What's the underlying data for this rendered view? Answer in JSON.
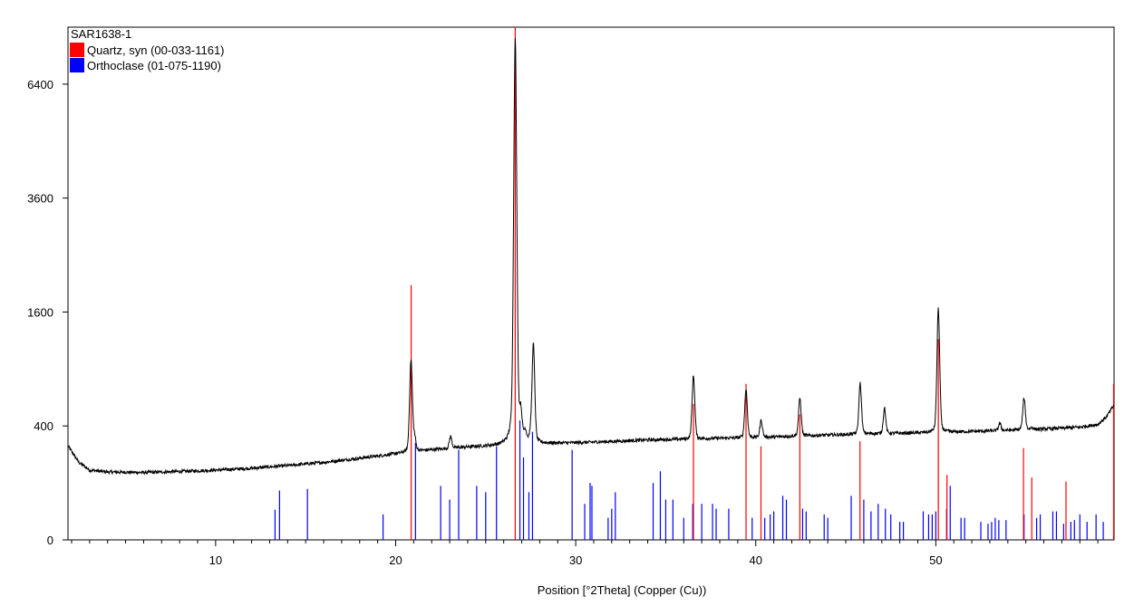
{
  "chart_data": {
    "type": "line",
    "title": "SAR1638-1",
    "xlabel": "Position [°2Theta] (Copper (Cu))",
    "ylabel": "",
    "x_range": [
      1.8,
      59.9
    ],
    "y_scale": "sqrt",
    "y_range": [
      0,
      8100
    ],
    "x_ticks": [
      10,
      20,
      30,
      40,
      50
    ],
    "y_ticks": [
      0,
      400,
      1600,
      3600,
      6400
    ],
    "grid": false,
    "legend_position": "top-left",
    "series": [
      {
        "name": "SAR1638-1",
        "color": "#000000",
        "background": [
          [
            1.8,
            270
          ],
          [
            2.4,
            185
          ],
          [
            3.0,
            150
          ],
          [
            4.0,
            142
          ],
          [
            6.0,
            140
          ],
          [
            8.0,
            144
          ],
          [
            10.0,
            150
          ],
          [
            12.0,
            158
          ],
          [
            14.0,
            170
          ],
          [
            16.0,
            185
          ],
          [
            18.0,
            205
          ],
          [
            20.0,
            228
          ],
          [
            22.0,
            250
          ],
          [
            24.0,
            265
          ],
          [
            26.0,
            275
          ],
          [
            28.0,
            285
          ],
          [
            30.0,
            290
          ],
          [
            32.0,
            298
          ],
          [
            34.0,
            308
          ],
          [
            36.0,
            312
          ],
          [
            38.0,
            318
          ],
          [
            40.0,
            322
          ],
          [
            42.0,
            330
          ],
          [
            44.0,
            338
          ],
          [
            46.0,
            345
          ],
          [
            48.0,
            350
          ],
          [
            50.0,
            355
          ],
          [
            52.0,
            362
          ],
          [
            54.0,
            370
          ],
          [
            56.0,
            378
          ],
          [
            58.0,
            392
          ],
          [
            59.0,
            410
          ],
          [
            59.5,
            470
          ],
          [
            59.9,
            560
          ]
        ],
        "peaks": [
          [
            20.85,
            1000
          ],
          [
            21.05,
            320
          ],
          [
            23.05,
            330
          ],
          [
            26.64,
            7800
          ],
          [
            26.95,
            460
          ],
          [
            27.2,
            340
          ],
          [
            27.5,
            330
          ],
          [
            27.65,
            1170
          ],
          [
            36.54,
            830
          ],
          [
            39.46,
            700
          ],
          [
            40.3,
            440
          ],
          [
            42.45,
            620
          ],
          [
            45.8,
            755
          ],
          [
            47.15,
            535
          ],
          [
            50.14,
            1650
          ],
          [
            53.55,
            420
          ],
          [
            54.9,
            620
          ],
          [
            55.35,
            390
          ]
        ]
      },
      {
        "name": "Quartz, syn (00-033-1161)",
        "color": "#ff0000",
        "reference_lines": [
          [
            20.86,
            2000
          ],
          [
            26.64,
            8100
          ],
          [
            36.54,
            570
          ],
          [
            39.46,
            750
          ],
          [
            40.29,
            270
          ],
          [
            42.45,
            485
          ],
          [
            45.79,
            300
          ],
          [
            50.14,
            1240
          ],
          [
            50.62,
            130
          ],
          [
            54.87,
            260
          ],
          [
            55.33,
            120
          ],
          [
            57.23,
            105
          ],
          [
            59.96,
            750
          ]
        ]
      },
      {
        "name": "Orthoclase (01-075-1190)",
        "color": "#0000ff",
        "reference_lines": [
          [
            13.3,
            28
          ],
          [
            13.55,
            75
          ],
          [
            15.1,
            80
          ],
          [
            19.3,
            20
          ],
          [
            21.1,
            290
          ],
          [
            22.5,
            90
          ],
          [
            23.0,
            50
          ],
          [
            23.5,
            250
          ],
          [
            24.5,
            90
          ],
          [
            25.0,
            70
          ],
          [
            25.6,
            270
          ],
          [
            26.9,
            440
          ],
          [
            27.1,
            210
          ],
          [
            27.4,
            70
          ],
          [
            27.6,
            360
          ],
          [
            29.8,
            250
          ],
          [
            30.5,
            40
          ],
          [
            30.8,
            100
          ],
          [
            30.9,
            90
          ],
          [
            31.8,
            15
          ],
          [
            32.0,
            30
          ],
          [
            32.2,
            70
          ],
          [
            34.3,
            100
          ],
          [
            34.7,
            145
          ],
          [
            35.0,
            50
          ],
          [
            35.4,
            50
          ],
          [
            36.0,
            15
          ],
          [
            36.5,
            40
          ],
          [
            37.0,
            40
          ],
          [
            37.6,
            40
          ],
          [
            37.8,
            30
          ],
          [
            38.5,
            30
          ],
          [
            39.8,
            15
          ],
          [
            40.5,
            15
          ],
          [
            40.8,
            20
          ],
          [
            41.0,
            25
          ],
          [
            41.5,
            60
          ],
          [
            41.7,
            50
          ],
          [
            42.6,
            30
          ],
          [
            42.8,
            25
          ],
          [
            43.8,
            20
          ],
          [
            44.0,
            15
          ],
          [
            45.3,
            60
          ],
          [
            46.0,
            50
          ],
          [
            46.4,
            25
          ],
          [
            46.8,
            40
          ],
          [
            47.2,
            30
          ],
          [
            47.5,
            20
          ],
          [
            48.0,
            10
          ],
          [
            48.2,
            10
          ],
          [
            49.3,
            25
          ],
          [
            49.6,
            20
          ],
          [
            49.8,
            20
          ],
          [
            50.0,
            25
          ],
          [
            50.6,
            30
          ],
          [
            50.8,
            90
          ],
          [
            51.4,
            15
          ],
          [
            51.6,
            15
          ],
          [
            52.5,
            10
          ],
          [
            52.9,
            8
          ],
          [
            53.1,
            10
          ],
          [
            53.3,
            15
          ],
          [
            53.5,
            12
          ],
          [
            53.9,
            12
          ],
          [
            54.9,
            20
          ],
          [
            55.6,
            15
          ],
          [
            55.8,
            20
          ],
          [
            56.5,
            25
          ],
          [
            56.7,
            25
          ],
          [
            57.1,
            8
          ],
          [
            57.5,
            10
          ],
          [
            57.7,
            12
          ],
          [
            58.0,
            20
          ],
          [
            58.4,
            10
          ],
          [
            58.9,
            20
          ],
          [
            59.3,
            10
          ]
        ]
      }
    ]
  }
}
